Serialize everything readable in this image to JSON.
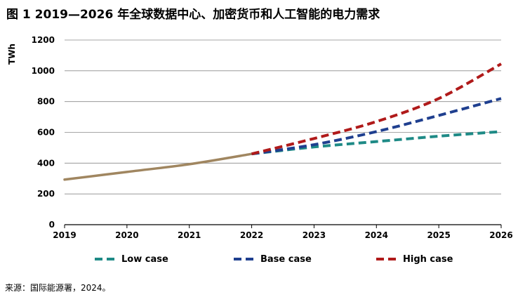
{
  "title": "图 1  2019—2026 年全球数据中心、加密货币和人工智能的电力需求",
  "source": "来源：国际能源署，2024。",
  "chart_data": {
    "type": "line",
    "title": "图 1  2019—2026 年全球数据中心、加密货币和人工智能的电力需求",
    "xlabel": "",
    "ylabel": "TWh",
    "xlim": [
      2019,
      2026
    ],
    "ylim": [
      0,
      1200
    ],
    "x_ticks": [
      2019,
      2020,
      2021,
      2022,
      2023,
      2024,
      2025,
      2026
    ],
    "y_ticks": [
      0,
      200,
      400,
      600,
      800,
      1000,
      1200
    ],
    "grid": "horizontal",
    "legend_position": "bottom",
    "historical": {
      "color": "#a08660",
      "x": [
        2019,
        2020,
        2021,
        2022
      ],
      "values": [
        293,
        343,
        393,
        460
      ]
    },
    "series": [
      {
        "name": "Low case",
        "color": "#1e8a86",
        "style": "dashed",
        "x": [
          2022,
          2023,
          2024,
          2025,
          2026
        ],
        "values": [
          460,
          505,
          540,
          575,
          605
        ]
      },
      {
        "name": "Base case",
        "color": "#1f3f8f",
        "style": "dashed",
        "x": [
          2022,
          2023,
          2024,
          2025,
          2026
        ],
        "values": [
          460,
          520,
          605,
          710,
          820
        ]
      },
      {
        "name": "High case",
        "color": "#b01a1a",
        "style": "dashed",
        "x": [
          2022,
          2023,
          2024,
          2025,
          2026
        ],
        "values": [
          460,
          560,
          670,
          820,
          1045
        ]
      }
    ]
  }
}
